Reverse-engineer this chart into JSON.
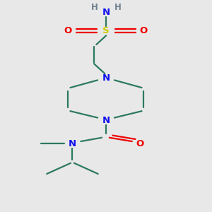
{
  "bg_color": "#e8e8e8",
  "bond_color": "#2d7a5e",
  "N_color": "#1010ee",
  "O_color": "#ee0000",
  "S_color": "#cccc00",
  "H_color": "#708090",
  "line_width": 1.6,
  "font_size": 9.5,
  "figsize": [
    3.0,
    3.0
  ],
  "dpi": 100,
  "xlim": [
    2.5,
    7.5
  ],
  "ylim": [
    0.5,
    10.0
  ]
}
